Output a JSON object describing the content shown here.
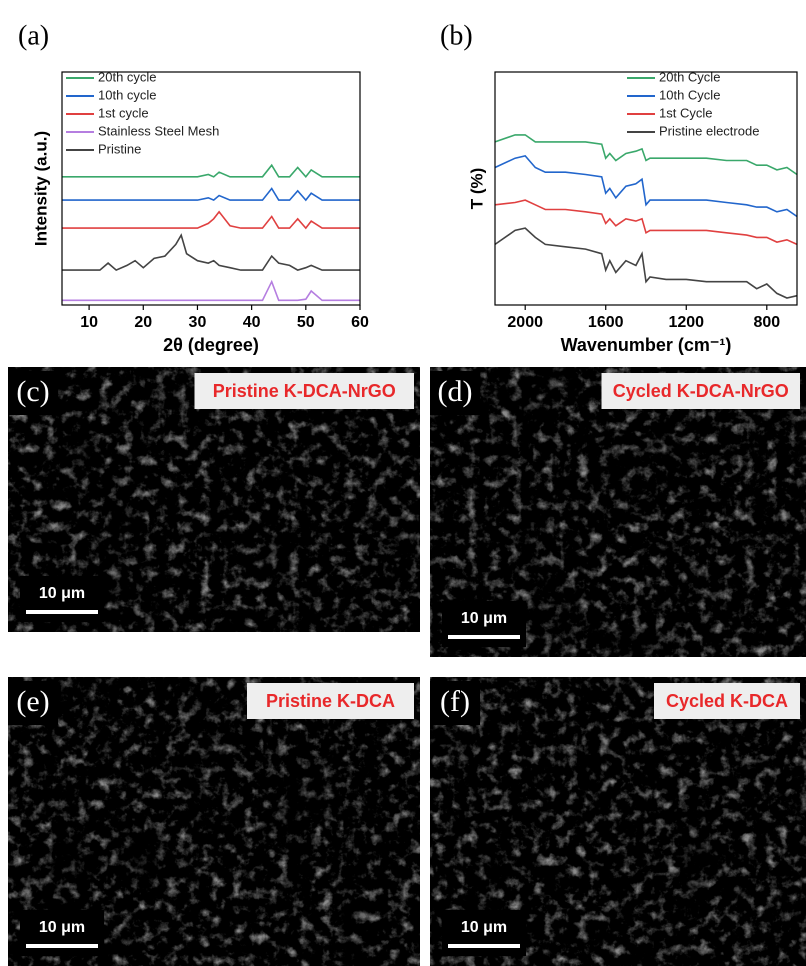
{
  "chart_data": [
    {
      "type": "line",
      "panel_label": "(a)",
      "xlabel": "2θ (degree)",
      "ylabel": "Intensity (a.u.)",
      "legend": "upper left",
      "x": [
        5,
        8,
        10,
        12,
        13.5,
        15,
        17,
        18.5,
        20,
        22,
        24,
        26,
        27,
        28,
        30,
        32,
        33,
        34,
        36,
        38,
        40,
        42,
        43.7,
        45,
        47,
        48.5,
        50,
        51,
        53,
        56,
        60
      ],
      "xlim": [
        5,
        60
      ],
      "xticks": [
        10,
        20,
        30,
        40,
        50,
        60
      ],
      "ylim": [
        0,
        10
      ],
      "series": [
        {
          "name": "20th cycle",
          "color": "#3aa86b",
          "values": [
            5.5,
            5.5,
            5.5,
            5.5,
            5.5,
            5.5,
            5.5,
            5.5,
            5.5,
            5.5,
            5.5,
            5.5,
            5.5,
            5.5,
            5.5,
            5.6,
            5.5,
            5.7,
            5.5,
            5.5,
            5.5,
            5.5,
            6.0,
            5.5,
            5.5,
            5.9,
            5.5,
            5.8,
            5.5,
            5.5,
            5.5
          ]
        },
        {
          "name": "10th cycle",
          "color": "#2266cc",
          "values": [
            4.5,
            4.5,
            4.5,
            4.5,
            4.5,
            4.5,
            4.5,
            4.5,
            4.5,
            4.5,
            4.5,
            4.5,
            4.5,
            4.5,
            4.5,
            4.6,
            4.5,
            4.7,
            4.5,
            4.5,
            4.5,
            4.5,
            5.0,
            4.5,
            4.5,
            4.9,
            4.5,
            4.8,
            4.5,
            4.5,
            4.5
          ]
        },
        {
          "name": "1st cycle",
          "color": "#e04040",
          "values": [
            3.3,
            3.3,
            3.3,
            3.3,
            3.3,
            3.3,
            3.3,
            3.3,
            3.3,
            3.3,
            3.3,
            3.3,
            3.3,
            3.3,
            3.3,
            3.5,
            3.7,
            4.0,
            3.4,
            3.3,
            3.3,
            3.3,
            3.8,
            3.3,
            3.3,
            3.7,
            3.3,
            3.6,
            3.3,
            3.3,
            3.3
          ]
        },
        {
          "name": "Stainless Steel Mesh",
          "color": "#b57ee0",
          "values": [
            0.2,
            0.2,
            0.2,
            0.2,
            0.2,
            0.2,
            0.2,
            0.2,
            0.2,
            0.2,
            0.2,
            0.2,
            0.2,
            0.2,
            0.2,
            0.2,
            0.2,
            0.2,
            0.2,
            0.2,
            0.2,
            0.2,
            1.0,
            0.2,
            0.2,
            0.2,
            0.25,
            0.6,
            0.2,
            0.2,
            0.2
          ]
        },
        {
          "name": "Pristine",
          "color": "#444444",
          "values": [
            1.5,
            1.5,
            1.5,
            1.5,
            1.8,
            1.5,
            1.7,
            1.9,
            1.6,
            2.0,
            2.1,
            2.6,
            3.0,
            2.2,
            1.9,
            1.8,
            1.9,
            1.7,
            1.6,
            1.5,
            1.5,
            1.5,
            2.1,
            1.8,
            1.7,
            1.5,
            1.6,
            1.7,
            1.5,
            1.5,
            1.5
          ]
        }
      ]
    },
    {
      "type": "line",
      "panel_label": "(b)",
      "xlabel": "Wavenumber (cm⁻¹)",
      "ylabel": "T (%)",
      "legend": "upper right",
      "x": [
        2150,
        2050,
        2000,
        1950,
        1900,
        1800,
        1700,
        1620,
        1600,
        1580,
        1550,
        1500,
        1450,
        1420,
        1400,
        1380,
        1300,
        1200,
        1100,
        1000,
        900,
        850,
        800,
        750,
        700,
        650
      ],
      "xlim": [
        2150,
        650
      ],
      "xticks": [
        2000,
        1600,
        1200,
        800
      ],
      "ylim": [
        0,
        10
      ],
      "series": [
        {
          "name": "20th Cycle",
          "color": "#3aa86b",
          "values": [
            7.0,
            7.3,
            7.3,
            7.0,
            7.0,
            7.0,
            7.0,
            6.9,
            6.3,
            6.5,
            6.2,
            6.5,
            6.6,
            6.7,
            6.2,
            6.3,
            6.3,
            6.3,
            6.3,
            6.2,
            6.2,
            6.0,
            6.0,
            5.8,
            5.9,
            5.6
          ]
        },
        {
          "name": "10th Cycle",
          "color": "#2266cc",
          "values": [
            5.9,
            6.3,
            6.4,
            5.9,
            5.7,
            5.7,
            5.6,
            5.5,
            4.8,
            5.0,
            4.6,
            5.1,
            5.2,
            5.4,
            4.3,
            4.5,
            4.5,
            4.5,
            4.5,
            4.4,
            4.3,
            4.2,
            4.2,
            4.0,
            4.1,
            3.8
          ]
        },
        {
          "name": "1st Cycle",
          "color": "#e04040",
          "values": [
            4.3,
            4.4,
            4.5,
            4.3,
            4.1,
            4.1,
            4.0,
            3.9,
            3.5,
            3.7,
            3.4,
            3.7,
            3.6,
            3.7,
            3.1,
            3.2,
            3.2,
            3.2,
            3.2,
            3.1,
            3.0,
            2.9,
            2.9,
            2.7,
            2.8,
            2.6
          ]
        },
        {
          "name": "Pristine electrode",
          "color": "#444444",
          "values": [
            2.6,
            3.2,
            3.3,
            2.9,
            2.6,
            2.5,
            2.4,
            2.2,
            1.5,
            1.9,
            1.4,
            1.9,
            1.7,
            2.2,
            1.0,
            1.2,
            1.1,
            1.1,
            1.0,
            1.0,
            1.0,
            0.7,
            0.9,
            0.5,
            0.3,
            0.4
          ]
        }
      ]
    }
  ],
  "images": [
    {
      "label": "(c)",
      "caption": "Pristine K-DCA-NrGO",
      "scale_bar": "10 μm"
    },
    {
      "label": "(d)",
      "caption": "Cycled K-DCA-NrGO",
      "scale_bar": "10 μm"
    },
    {
      "label": "(e)",
      "caption": "Pristine K-DCA",
      "scale_bar": "10 μm"
    },
    {
      "label": "(f)",
      "caption": "Cycled K-DCA",
      "scale_bar": "10 μm"
    }
  ]
}
